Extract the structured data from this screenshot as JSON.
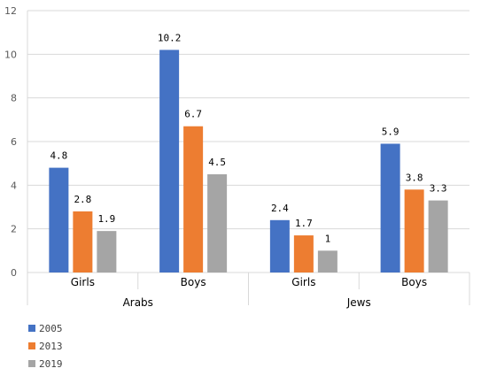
{
  "chart_data": {
    "type": "bar",
    "groups": [
      "Arabs",
      "Jews"
    ],
    "categories": [
      "Girls",
      "Boys",
      "Girls",
      "Boys"
    ],
    "category_groups": [
      "Arabs",
      "Arabs",
      "Jews",
      "Jews"
    ],
    "series": [
      {
        "name": "2005",
        "color": "#4472C4",
        "values": [
          4.8,
          10.2,
          2.4,
          5.9
        ],
        "labels": [
          "4.8",
          "10.2",
          "2.4",
          "5.9"
        ]
      },
      {
        "name": "2013",
        "color": "#ED7D31",
        "values": [
          2.8,
          6.7,
          1.7,
          3.8
        ],
        "labels": [
          "2.8",
          "6.7",
          "1.7",
          "3.8"
        ]
      },
      {
        "name": "2019",
        "color": "#A5A5A5",
        "values": [
          1.9,
          4.5,
          1,
          3.3
        ],
        "labels": [
          "1.9",
          "4.5",
          "1",
          "3.3"
        ]
      }
    ],
    "y_ticks": [
      "0",
      "2",
      "4",
      "6",
      "8",
      "10",
      "12"
    ],
    "ylim": [
      0,
      12
    ],
    "title": "",
    "xlabel": "",
    "ylabel": "",
    "grid": true,
    "legend_position": "bottom-left"
  }
}
